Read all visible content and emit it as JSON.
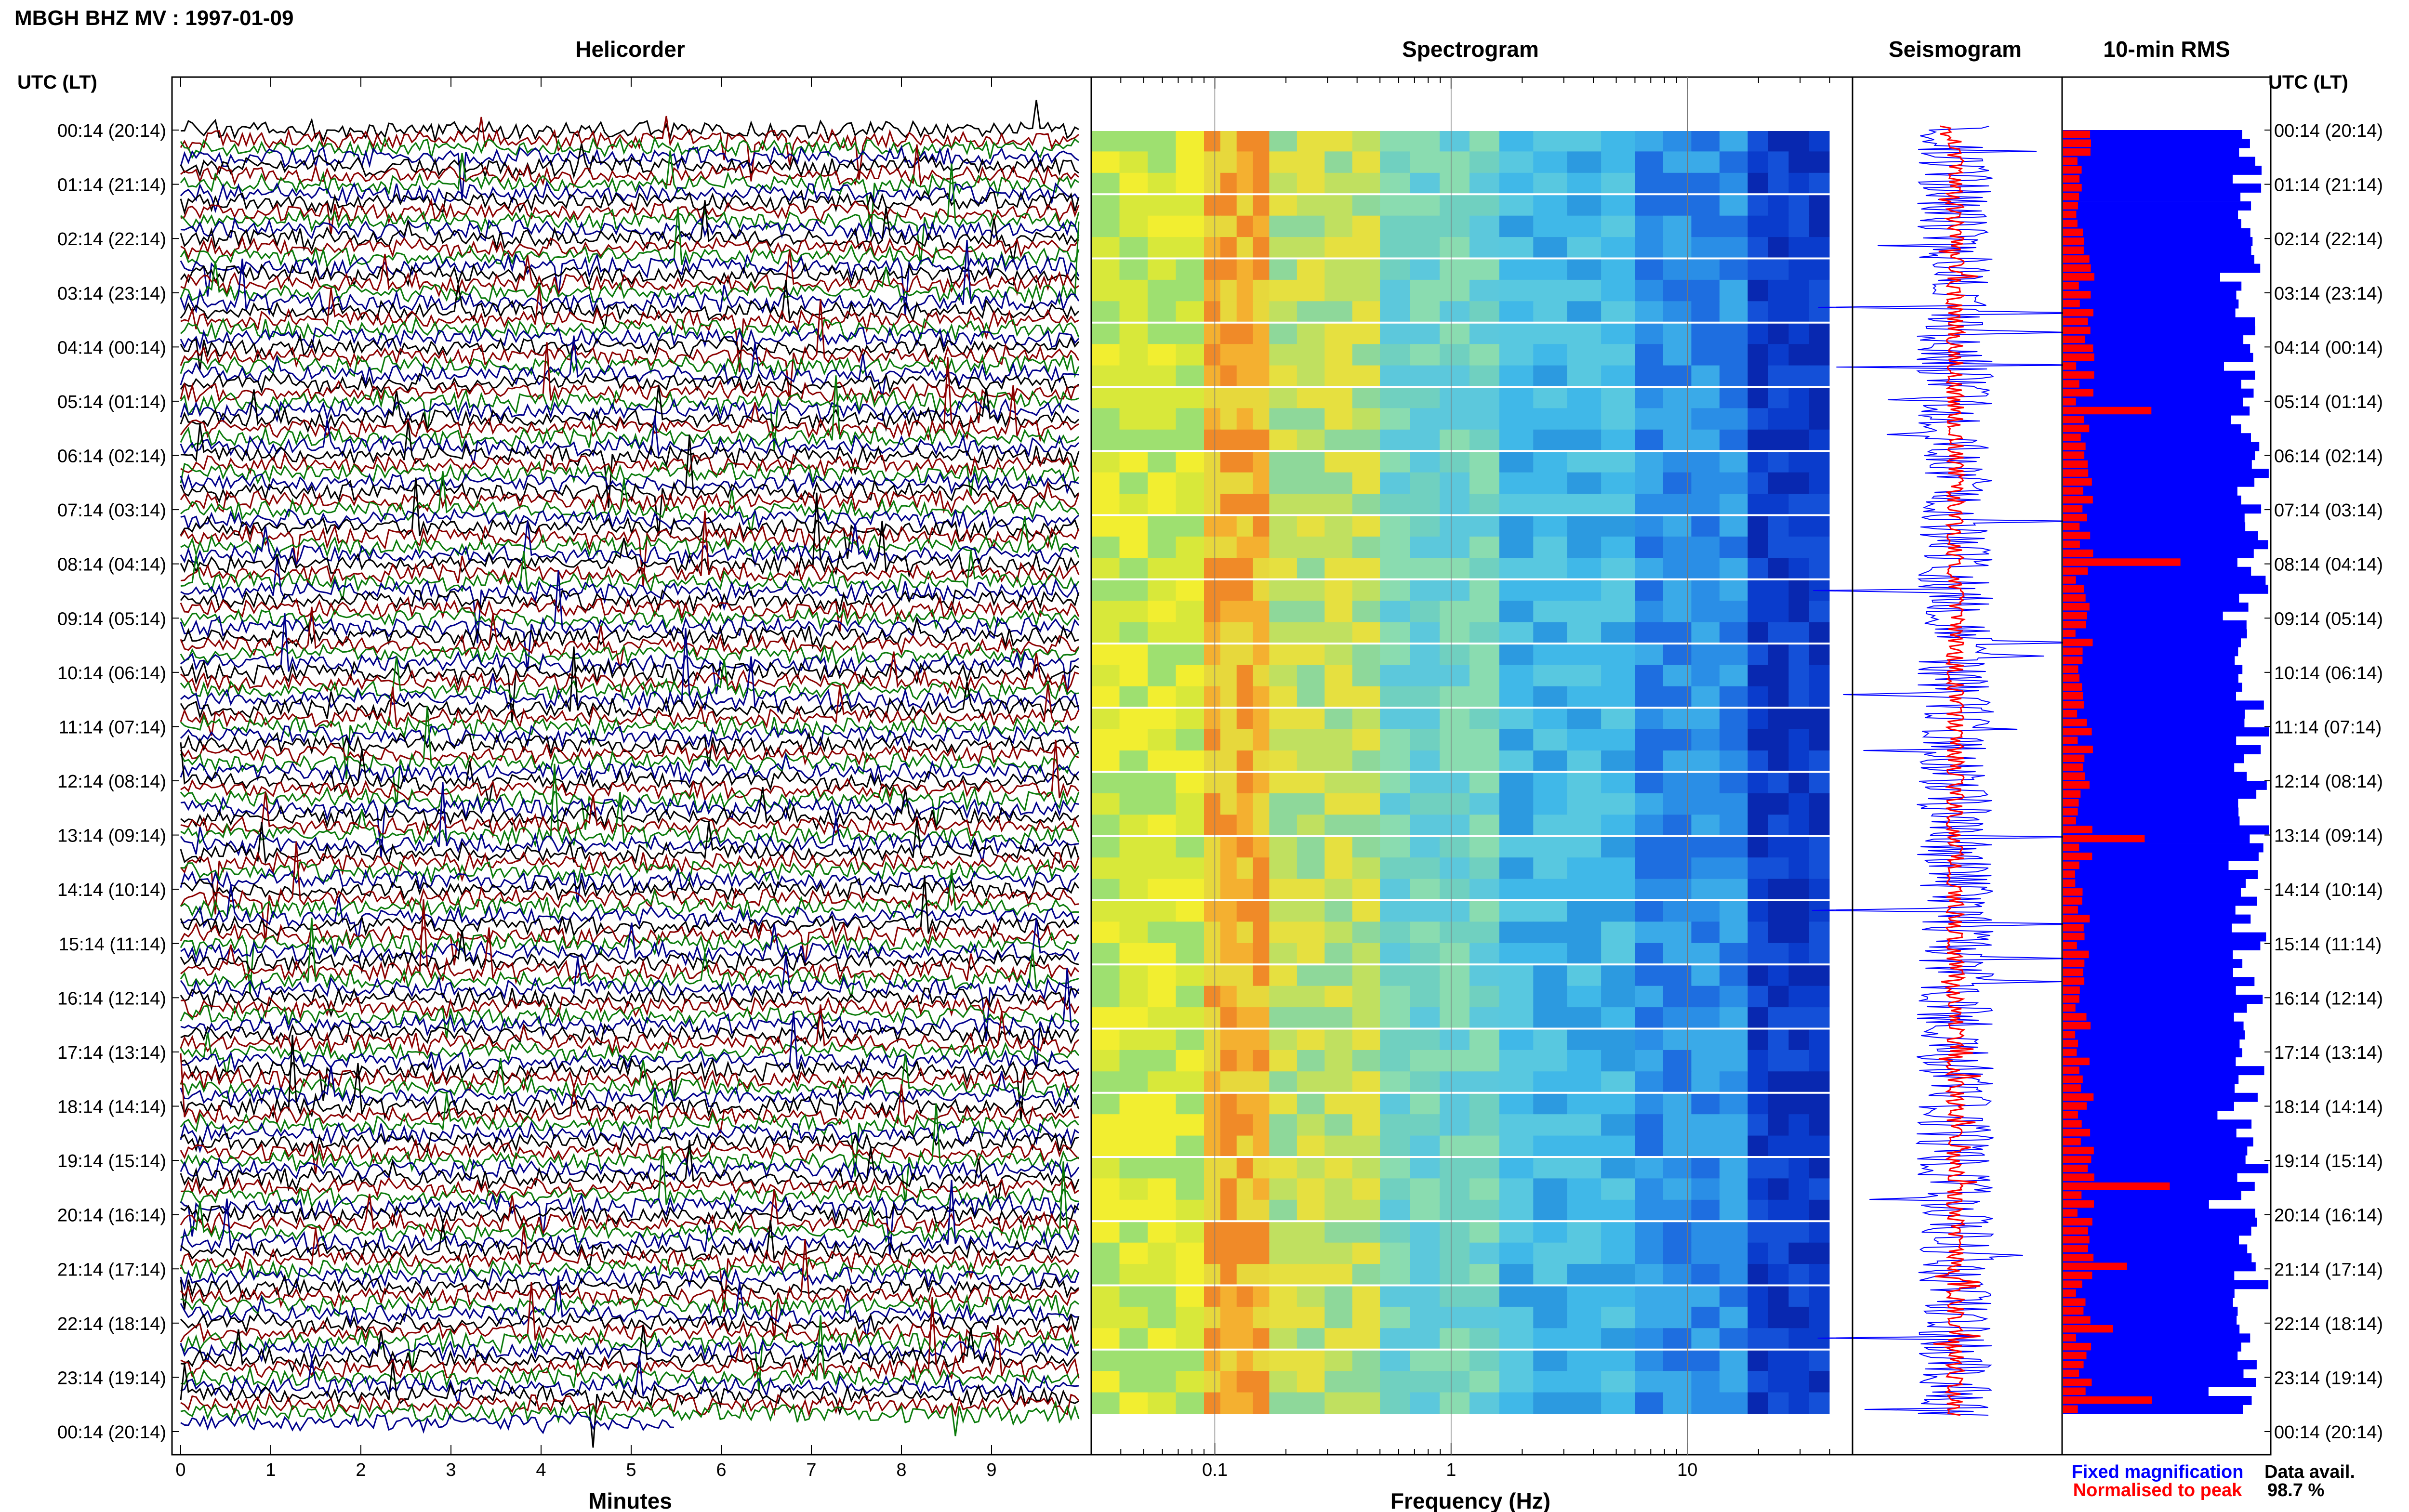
{
  "header": {
    "title": "MBGH BHZ MV : 1997-01-09",
    "utc_label": "UTC (LT)"
  },
  "panels": {
    "helicorder": "Helicorder",
    "spectrogram": "Spectrogram",
    "seismogram": "Seismogram",
    "rms": "10-min RMS"
  },
  "time_labels": [
    "00:14 (20:14)",
    "01:14 (21:14)",
    "02:14 (22:14)",
    "03:14 (23:14)",
    "04:14 (00:14)",
    "05:14 (01:14)",
    "06:14 (02:14)",
    "07:14 (03:14)",
    "08:14 (04:14)",
    "09:14 (05:14)",
    "10:14 (06:14)",
    "11:14 (07:14)",
    "12:14 (08:14)",
    "13:14 (09:14)",
    "14:14 (10:14)",
    "15:14 (11:14)",
    "16:14 (12:14)",
    "17:14 (13:14)",
    "18:14 (14:14)",
    "19:14 (15:14)",
    "20:14 (16:14)",
    "21:14 (17:14)",
    "22:14 (18:14)",
    "23:14 (19:14)",
    "00:14 (20:14)"
  ],
  "helicorder_axis": {
    "label": "Minutes",
    "ticks": [
      "0",
      "1",
      "2",
      "3",
      "4",
      "5",
      "6",
      "7",
      "8",
      "9"
    ],
    "trace_colors": [
      "#000000",
      "#8b0000",
      "#0a7a0a",
      "#00008b"
    ]
  },
  "spectrogram_axis": {
    "label": "Frequency (Hz)",
    "tick_labels": [
      "0.1",
      "1",
      "10"
    ],
    "fmin": 0.03,
    "fmax": 50,
    "scale": "log"
  },
  "legend": {
    "fixed": "Fixed magnification",
    "normalised": "Normalised to peak",
    "fixed_color": "#0000ff",
    "normalised_color": "#ff0000"
  },
  "data_availability": {
    "label": "Data avail.",
    "value": "98.7 %"
  },
  "chart_data": [
    {
      "type": "line",
      "title": "Helicorder",
      "xlabel": "Minutes",
      "xlim": [
        0,
        10
      ],
      "rows_per_day": 144,
      "row_minutes": 10
    },
    {
      "type": "heatmap",
      "title": "Spectrogram",
      "xlabel": "Frequency (Hz)",
      "xscale": "log",
      "xlim": [
        0.03,
        50
      ]
    },
    {
      "type": "line",
      "title": "Seismogram",
      "series": [
        {
          "name": "Fixed magnification"
        },
        {
          "name": "Normalised to peak"
        }
      ]
    },
    {
      "type": "bar",
      "title": "10-min RMS",
      "rows": 144
    }
  ]
}
